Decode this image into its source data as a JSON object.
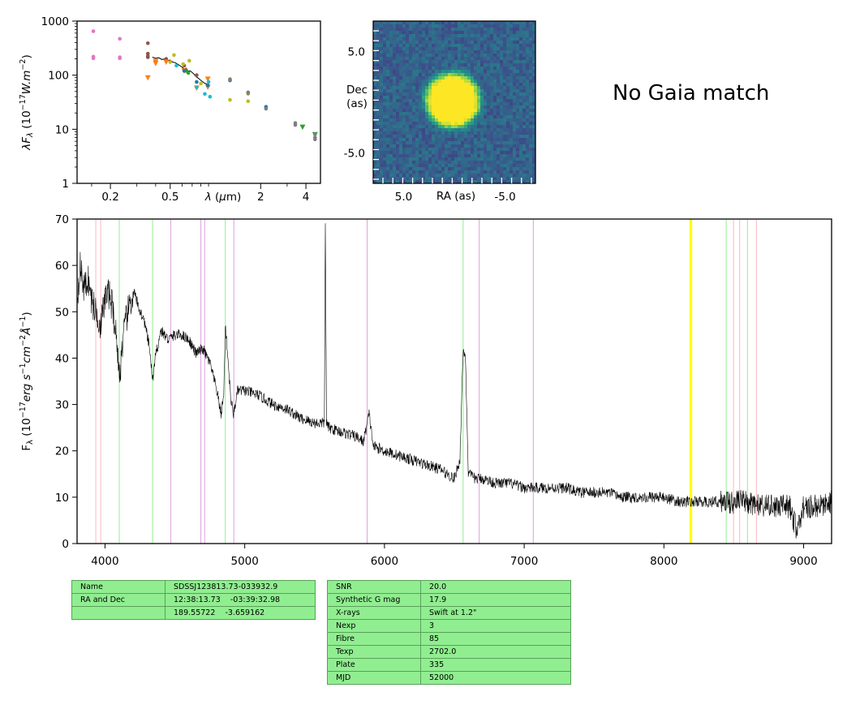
{
  "chart_data": [
    {
      "type": "scatter",
      "panel": "SED",
      "xlabel": "λ (μm)",
      "ylabel": "λF_λ (10^-17 W.m^-2)",
      "xscale": "log",
      "yscale": "log",
      "xlim": [
        0.12,
        5.0
      ],
      "ylim": [
        1,
        1000
      ],
      "xticks": [
        "0.2",
        "0.5",
        "2",
        "4"
      ],
      "xtick_values": [
        0.2,
        0.5,
        2,
        4
      ],
      "yticks": [
        "1",
        "10",
        "100",
        "1000"
      ],
      "ytick_values": [
        1,
        10,
        100,
        1000
      ],
      "line": [
        [
          0.38,
          215
        ],
        [
          0.4,
          205
        ],
        [
          0.42,
          210
        ],
        [
          0.44,
          195
        ],
        [
          0.46,
          200
        ],
        [
          0.48,
          185
        ],
        [
          0.5,
          190
        ],
        [
          0.52,
          175
        ],
        [
          0.54,
          170
        ],
        [
          0.56,
          160
        ],
        [
          0.58,
          150
        ],
        [
          0.6,
          140
        ],
        [
          0.62,
          130
        ],
        [
          0.64,
          135
        ],
        [
          0.66,
          118
        ],
        [
          0.68,
          120
        ],
        [
          0.7,
          112
        ],
        [
          0.72,
          105
        ],
        [
          0.74,
          95
        ],
        [
          0.76,
          90
        ],
        [
          0.78,
          85
        ],
        [
          0.8,
          80
        ],
        [
          0.82,
          76
        ],
        [
          0.84,
          72
        ],
        [
          0.86,
          70
        ],
        [
          0.88,
          68
        ],
        [
          0.9,
          66
        ],
        [
          0.92,
          64
        ]
      ],
      "series": [
        {
          "color": "#e377c2",
          "marker": "circle",
          "points": [
            [
              0.154,
              650
            ],
            [
              0.154,
              220
            ],
            [
              0.154,
              205
            ],
            [
              0.231,
              470
            ],
            [
              0.231,
              215
            ],
            [
              0.231,
              205
            ]
          ]
        },
        {
          "color": "#8c564b",
          "marker": "circle",
          "points": [
            [
              0.355,
              390
            ],
            [
              0.355,
              250
            ],
            [
              0.355,
              225
            ],
            [
              0.355,
              215
            ],
            [
              0.47,
              200
            ],
            [
              0.62,
              150
            ],
            [
              0.75,
              100
            ]
          ]
        },
        {
          "color": "#ff7f0e",
          "marker": "triangle",
          "points": [
            [
              0.355,
              90
            ],
            [
              0.4,
              180
            ],
            [
              0.4,
              165
            ],
            [
              0.47,
              175
            ],
            [
              0.62,
              120
            ],
            [
              0.75,
              58
            ],
            [
              0.89,
              85
            ],
            [
              0.89,
              60
            ]
          ]
        },
        {
          "color": "#bcbd22",
          "marker": "circle",
          "points": [
            [
              0.5,
              175
            ],
            [
              0.53,
              235
            ],
            [
              0.61,
              160
            ],
            [
              0.67,
              185
            ],
            [
              0.8,
              70
            ],
            [
              1.25,
              85
            ],
            [
              1.25,
              35
            ],
            [
              1.65,
              45
            ],
            [
              1.65,
              33
            ],
            [
              2.17,
              25
            ]
          ]
        },
        {
          "color": "#2ca02c",
          "marker": "circle",
          "points": [
            [
              0.64,
              120
            ],
            [
              0.66,
              110
            ]
          ]
        },
        {
          "color": "#2ca02c",
          "marker": "triangle",
          "points": [
            [
              3.8,
              11
            ],
            [
              4.6,
              8
            ]
          ]
        },
        {
          "color": "#17becf",
          "marker": "circle",
          "points": [
            [
              0.55,
              150
            ],
            [
              0.75,
              60
            ],
            [
              0.85,
              45
            ],
            [
              0.9,
              75
            ],
            [
              0.92,
              40
            ]
          ]
        },
        {
          "color": "#1f77b4",
          "marker": "circle",
          "points": [
            [
              0.62,
              120
            ],
            [
              0.75,
              75
            ],
            [
              0.89,
              65
            ],
            [
              1.25,
              80
            ],
            [
              1.65,
              48
            ],
            [
              2.17,
              26
            ]
          ]
        },
        {
          "color": "#7f7f7f",
          "marker": "circle",
          "points": [
            [
              1.25,
              83
            ],
            [
              1.65,
              47
            ],
            [
              2.17,
              24
            ],
            [
              3.4,
              13
            ],
            [
              3.4,
              12
            ],
            [
              4.6,
              8
            ],
            [
              4.6,
              7
            ],
            [
              4.6,
              6.5
            ]
          ]
        }
      ]
    },
    {
      "type": "heatmap",
      "panel": "Image cutout",
      "xlabel": "RA (as)",
      "ylabel": "Dec\n(as)",
      "xlim": [
        8.0,
        -8.0
      ],
      "ylim": [
        -8.0,
        8.0
      ],
      "xticks": [
        "5.0",
        "-5.0"
      ],
      "xtick_values": [
        5.0,
        -5.0
      ],
      "yticks": [
        "5.0",
        "-5.0"
      ],
      "ytick_values": [
        5.0,
        -5.0
      ],
      "colormap": "viridis",
      "source_center": [
        0.0,
        0.0
      ]
    },
    {
      "type": "line",
      "panel": "Spectrum",
      "xlabel": "",
      "ylabel": "F_λ (10^-17 erg s^-1 cm^-2 Å^-1)",
      "xlim": [
        3800,
        9200
      ],
      "ylim": [
        0,
        70
      ],
      "xticks": [
        "4000",
        "5000",
        "6000",
        "7000",
        "8000",
        "9000"
      ],
      "xtick_values": [
        4000,
        5000,
        6000,
        7000,
        8000,
        9000
      ],
      "yticks": [
        "0",
        "10",
        "20",
        "30",
        "40",
        "50",
        "60",
        "70"
      ],
      "ytick_values": [
        0,
        10,
        20,
        30,
        40,
        50,
        60,
        70
      ],
      "spectrum": [
        [
          3800,
          52
        ],
        [
          3820,
          60
        ],
        [
          3850,
          55
        ],
        [
          3880,
          57
        ],
        [
          3900,
          53
        ],
        [
          3920,
          51
        ],
        [
          3950,
          49
        ],
        [
          3970,
          47
        ],
        [
          4000,
          53
        ],
        [
          4030,
          54
        ],
        [
          4060,
          50
        ],
        [
          4090,
          42
        ],
        [
          4102,
          35
        ],
        [
          4120,
          42
        ],
        [
          4150,
          48
        ],
        [
          4180,
          52
        ],
        [
          4210,
          54
        ],
        [
          4240,
          51
        ],
        [
          4280,
          48
        ],
        [
          4320,
          42
        ],
        [
          4340,
          35
        ],
        [
          4360,
          40
        ],
        [
          4400,
          46
        ],
        [
          4450,
          44
        ],
        [
          4500,
          45
        ],
        [
          4550,
          45
        ],
        [
          4600,
          44
        ],
        [
          4650,
          41
        ],
        [
          4700,
          42
        ],
        [
          4750,
          39
        ],
        [
          4800,
          33
        ],
        [
          4830,
          28
        ],
        [
          4850,
          32
        ],
        [
          4861,
          47
        ],
        [
          4875,
          42
        ],
        [
          4900,
          31
        ],
        [
          4920,
          28
        ],
        [
          4950,
          33
        ],
        [
          5000,
          33
        ],
        [
          5100,
          32
        ],
        [
          5200,
          30
        ],
        [
          5300,
          29
        ],
        [
          5400,
          27
        ],
        [
          5500,
          26
        ],
        [
          5570,
          26
        ],
        [
          5577,
          69
        ],
        [
          5585,
          26
        ],
        [
          5600,
          25
        ],
        [
          5700,
          24
        ],
        [
          5800,
          23
        ],
        [
          5850,
          22
        ],
        [
          5890,
          28
        ],
        [
          5920,
          21
        ],
        [
          6000,
          20
        ],
        [
          6100,
          19
        ],
        [
          6200,
          18
        ],
        [
          6300,
          17
        ],
        [
          6400,
          16
        ],
        [
          6500,
          14
        ],
        [
          6540,
          18
        ],
        [
          6563,
          42
        ],
        [
          6580,
          40
        ],
        [
          6600,
          15
        ],
        [
          6650,
          14
        ],
        [
          6700,
          14
        ],
        [
          6800,
          13
        ],
        [
          6900,
          13
        ],
        [
          7000,
          12
        ],
        [
          7100,
          12
        ],
        [
          7200,
          12
        ],
        [
          7300,
          12
        ],
        [
          7400,
          11
        ],
        [
          7500,
          11
        ],
        [
          7600,
          11
        ],
        [
          7700,
          10
        ],
        [
          7800,
          10
        ],
        [
          7900,
          10
        ],
        [
          8000,
          10
        ],
        [
          8100,
          9
        ],
        [
          8200,
          9
        ],
        [
          8300,
          9
        ],
        [
          8400,
          9
        ],
        [
          8500,
          9
        ],
        [
          8600,
          9
        ],
        [
          8700,
          8
        ],
        [
          8800,
          8
        ],
        [
          8900,
          8
        ],
        [
          8950,
          3
        ],
        [
          9000,
          8
        ],
        [
          9100,
          8
        ],
        [
          9200,
          9
        ]
      ],
      "vlines": [
        {
          "x": 3934,
          "color": "#ffb6c1"
        },
        {
          "x": 3969,
          "color": "#ffb6c1"
        },
        {
          "x": 4102,
          "color": "#90ee90"
        },
        {
          "x": 4340,
          "color": "#90ee90"
        },
        {
          "x": 4471,
          "color": "#dda0dd"
        },
        {
          "x": 4686,
          "color": "#dda0dd"
        },
        {
          "x": 4713,
          "color": "#dda0dd"
        },
        {
          "x": 4861,
          "color": "#90ee90"
        },
        {
          "x": 4922,
          "color": "#dda0dd"
        },
        {
          "x": 5876,
          "color": "#dda0dd"
        },
        {
          "x": 6563,
          "color": "#90ee90"
        },
        {
          "x": 6678,
          "color": "#dda0dd"
        },
        {
          "x": 7065,
          "color": "#dda0dd"
        },
        {
          "x": 8190,
          "color": "#ffff00"
        },
        {
          "x": 8195,
          "color": "#ffff00"
        },
        {
          "x": 8446,
          "color": "#90ee90"
        },
        {
          "x": 8498,
          "color": "#ffb6c1"
        },
        {
          "x": 8542,
          "color": "#ffb6c1"
        },
        {
          "x": 8598,
          "color": "#90ee90"
        },
        {
          "x": 8662,
          "color": "#ffb6c1"
        }
      ]
    }
  ],
  "gaia": {
    "text": "No Gaia match"
  },
  "table_left": [
    [
      "Name",
      "SDSSJ123813.73-033932.9"
    ],
    [
      "RA and Dec",
      "12:38:13.73    -03:39:32.98"
    ],
    [
      "",
      "189.55722    -3.659162"
    ]
  ],
  "table_right": [
    [
      "SNR",
      "20.0"
    ],
    [
      "Synthetic G mag",
      "17.9"
    ],
    [
      "X-rays",
      "Swift at 1.2\""
    ],
    [
      "Nexp",
      "3"
    ],
    [
      "Fibre",
      "85"
    ],
    [
      "Texp",
      "2702.0"
    ],
    [
      "Plate",
      "335"
    ],
    [
      "MJD",
      "52000"
    ]
  ],
  "colors": {
    "table_bg": "#90ee90",
    "line": "#000000"
  }
}
